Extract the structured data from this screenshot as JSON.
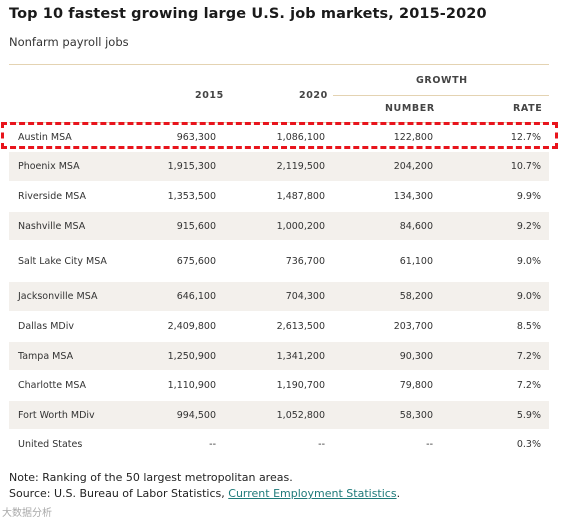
{
  "title": "Top 10 fastest growing large U.S. job markets, 2015-2020",
  "subtitle": "Nonfarm payroll jobs",
  "headers": {
    "col_2015": "2015",
    "col_2020": "2020",
    "growth": "GROWTH",
    "number": "NUMBER",
    "rate": "RATE"
  },
  "rows": [
    {
      "name": "Austin MSA",
      "v2015": "963,300",
      "v2020": "1,086,100",
      "number": "122,800",
      "rate": "12.7%",
      "highlighted": true
    },
    {
      "name": "Phoenix MSA",
      "v2015": "1,915,300",
      "v2020": "2,119,500",
      "number": "204,200",
      "rate": "10.7%"
    },
    {
      "name": "Riverside MSA",
      "v2015": "1,353,500",
      "v2020": "1,487,800",
      "number": "134,300",
      "rate": "9.9%"
    },
    {
      "name": "Nashville MSA",
      "v2015": "915,600",
      "v2020": "1,000,200",
      "number": "84,600",
      "rate": "9.2%"
    },
    {
      "name": "Salt Lake City MSA",
      "v2015": "675,600",
      "v2020": "736,700",
      "number": "61,100",
      "rate": "9.0%"
    },
    {
      "name": "Jacksonville MSA",
      "v2015": "646,100",
      "v2020": "704,300",
      "number": "58,200",
      "rate": "9.0%"
    },
    {
      "name": "Dallas MDiv",
      "v2015": "2,409,800",
      "v2020": "2,613,500",
      "number": "203,700",
      "rate": "8.5%"
    },
    {
      "name": "Tampa MSA",
      "v2015": "1,250,900",
      "v2020": "1,341,200",
      "number": "90,300",
      "rate": "7.2%"
    },
    {
      "name": "Charlotte MSA",
      "v2015": "1,110,900",
      "v2020": "1,190,700",
      "number": "79,800",
      "rate": "7.2%"
    },
    {
      "name": "Fort Worth MDiv",
      "v2015": "994,500",
      "v2020": "1,052,800",
      "number": "58,300",
      "rate": "5.9%"
    },
    {
      "name": "United States",
      "v2015": "--",
      "v2020": "--",
      "number": "--",
      "rate": "0.3%"
    }
  ],
  "note": "Note: Ranking of the 50 largest metropolitan areas.",
  "source": {
    "prefix": "Source: U.S. Bureau of Labor Statistics, ",
    "link_text": "Current Employment Statistics",
    "suffix": "."
  },
  "watermark": "大数据分析",
  "colors": {
    "accent_line": "#e4d3b2",
    "stripe": "#f3f0ec",
    "highlight": "#e8141c",
    "link": "#1f7a7a"
  }
}
